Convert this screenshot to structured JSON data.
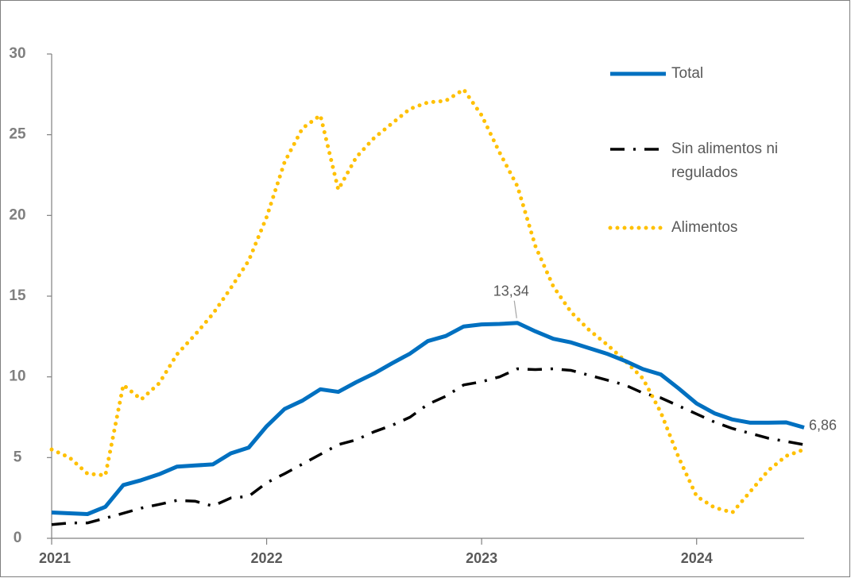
{
  "chart_data": {
    "type": "line",
    "categories": [
      "2021",
      null,
      null,
      null,
      null,
      null,
      null,
      null,
      null,
      null,
      null,
      null,
      "2022",
      null,
      null,
      null,
      null,
      null,
      null,
      null,
      null,
      null,
      null,
      null,
      "2023",
      null,
      null,
      null,
      null,
      null,
      null,
      null,
      null,
      null,
      null,
      null,
      "2024",
      null,
      null,
      null,
      null,
      null,
      null
    ],
    "ylim": [
      0,
      30
    ],
    "yticks": [
      0,
      5,
      10,
      15,
      20,
      25,
      30
    ],
    "series": [
      {
        "name": "Total",
        "color": "#0070c0",
        "style": "solid",
        "values": [
          1.6,
          1.55,
          1.5,
          1.95,
          3.3,
          3.6,
          3.97,
          4.44,
          4.51,
          4.58,
          5.26,
          5.62,
          6.94,
          8.01,
          8.53,
          9.23,
          9.07,
          9.67,
          10.21,
          10.84,
          11.44,
          12.22,
          12.53,
          13.12,
          13.25,
          13.28,
          13.34,
          12.82,
          12.36,
          12.13,
          11.78,
          11.43,
          10.99,
          10.48,
          10.15,
          9.28,
          8.35,
          7.74,
          7.36,
          7.16,
          7.16,
          7.18,
          6.86
        ],
        "value_labels": [
          null,
          null,
          null,
          null,
          null,
          null,
          null,
          null,
          null,
          null,
          null,
          null,
          null,
          null,
          null,
          null,
          null,
          null,
          null,
          null,
          null,
          null,
          null,
          null,
          null,
          null,
          "13,34",
          null,
          null,
          null,
          null,
          null,
          null,
          null,
          null,
          null,
          null,
          null,
          null,
          null,
          null,
          null,
          "6,86"
        ]
      },
      {
        "name": "Sin alimentos ni regulados",
        "color": "#000000",
        "style": "dashdot",
        "values": [
          0.85,
          0.95,
          0.95,
          1.25,
          1.55,
          1.87,
          2.1,
          2.35,
          2.3,
          2.0,
          2.5,
          2.6,
          3.44,
          4.0,
          4.6,
          5.2,
          5.8,
          6.1,
          6.6,
          7.0,
          7.5,
          8.3,
          8.8,
          9.5,
          9.7,
          10.0,
          10.5,
          10.45,
          10.5,
          10.4,
          10.1,
          9.8,
          9.5,
          9.0,
          8.7,
          8.2,
          7.7,
          7.2,
          6.8,
          6.5,
          6.2,
          6.0,
          5.8
        ]
      },
      {
        "name": "Alimentos",
        "color": "#ffc000",
        "style": "dotted",
        "values": [
          5.5,
          5.0,
          4.0,
          3.9,
          9.5,
          8.6,
          9.6,
          11.4,
          12.6,
          13.9,
          15.5,
          17.2,
          19.9,
          23.3,
          25.4,
          26.2,
          21.6,
          23.6,
          24.8,
          25.7,
          26.6,
          27.0,
          27.1,
          27.8,
          26.2,
          23.9,
          21.8,
          18.1,
          15.6,
          14.0,
          12.9,
          12.0,
          11.0,
          9.9,
          7.8,
          5.0,
          2.6,
          1.9,
          1.6,
          2.9,
          4.2,
          5.1,
          5.5
        ]
      }
    ],
    "grid": false,
    "legend": "right"
  }
}
